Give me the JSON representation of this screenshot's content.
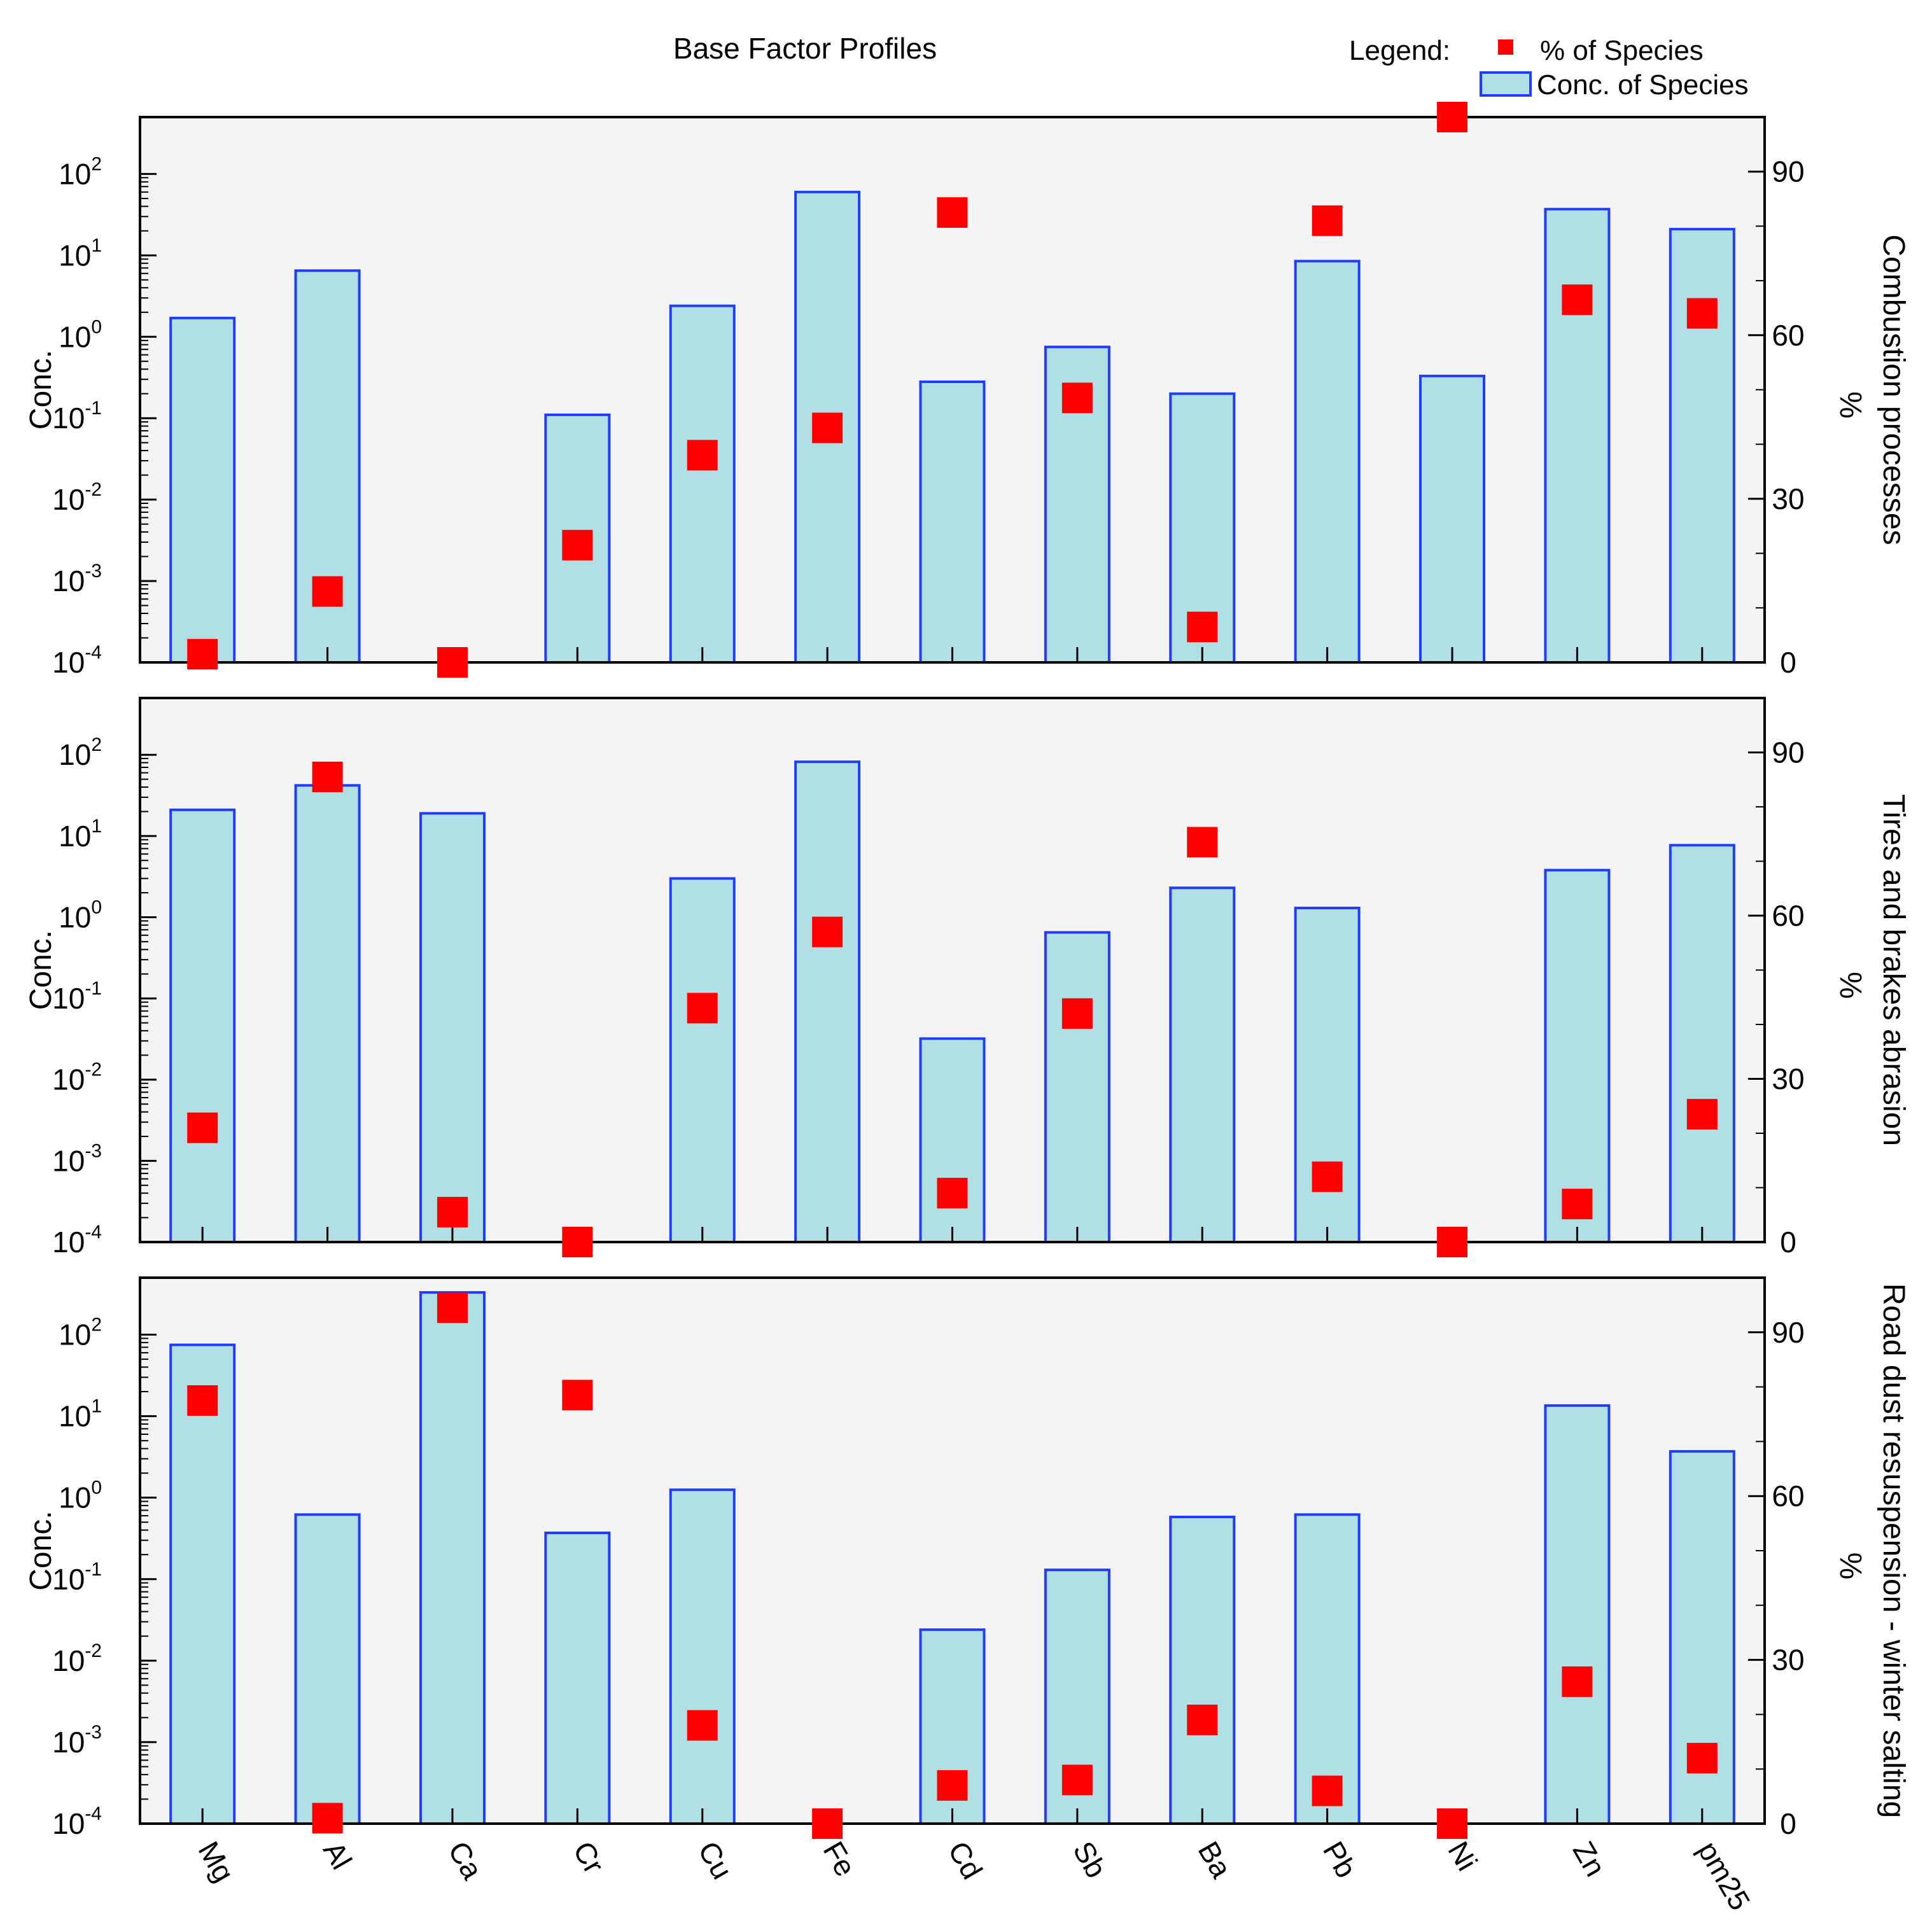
{
  "title": "Base Factor Profiles",
  "legend": {
    "label": "Legend:",
    "items": [
      {
        "name": "% of Species",
        "symbol": "red-square-marker",
        "color": "#ff0000"
      },
      {
        "name": "Conc. of Species",
        "symbol": "bar-swatch",
        "color": "#b0e0e6"
      }
    ],
    "placement": "top-right"
  },
  "colors": {
    "bar_fill": "#b0e0e6",
    "bar_stroke": "#1f3cff",
    "marker": "#ff0000",
    "plot_bg": "#f4f4f4",
    "axis": "#000000"
  },
  "chart_data": [
    {
      "type": "bar",
      "panel_label": "Combustion processes",
      "categories": [
        "Mg",
        "Al",
        "Ca",
        "Cr",
        "Cu",
        "Fe",
        "Cd",
        "Sb",
        "Ba",
        "Pb",
        "Ni",
        "Zn",
        "pm25"
      ],
      "ylabel_left": "Conc.",
      "ylabel_right": "%",
      "yscale_left": "log",
      "ylim_left": [
        0.0001,
        500
      ],
      "ylim_right": [
        0,
        100
      ],
      "left_ticks": [
        "10-4",
        "10-3",
        "10-2",
        "10-1",
        "100",
        "101",
        "102"
      ],
      "right_ticks": [
        "0",
        "30",
        "60",
        "90"
      ],
      "series": [
        {
          "name": "Conc. of Species",
          "kind": "bar",
          "axis": "left",
          "values": [
            1.7,
            6.5,
            null,
            0.11,
            2.4,
            60,
            0.28,
            0.75,
            0.2,
            8.5,
            0.33,
            37,
            21
          ]
        },
        {
          "name": "% of Species",
          "kind": "marker",
          "axis": "right",
          "values": [
            1.5,
            13,
            0,
            21.5,
            38,
            43,
            82.5,
            48.5,
            6.5,
            81,
            100,
            66.5,
            64
          ]
        }
      ]
    },
    {
      "type": "bar",
      "panel_label": "Tires and brakes abrasion",
      "categories": [
        "Mg",
        "Al",
        "Ca",
        "Cr",
        "Cu",
        "Fe",
        "Cd",
        "Sb",
        "Ba",
        "Pb",
        "Ni",
        "Zn",
        "pm25"
      ],
      "ylabel_left": "Conc.",
      "ylabel_right": "%",
      "yscale_left": "log",
      "ylim_left": [
        0.0001,
        500
      ],
      "ylim_right": [
        0,
        100
      ],
      "left_ticks": [
        "10-4",
        "10-3",
        "10-2",
        "10-1",
        "100",
        "101",
        "102"
      ],
      "right_ticks": [
        "0",
        "30",
        "60",
        "90"
      ],
      "series": [
        {
          "name": "Conc. of Species",
          "kind": "bar",
          "axis": "left",
          "values": [
            21,
            42,
            19,
            null,
            3,
            82,
            0.032,
            0.65,
            2.3,
            1.3,
            null,
            3.8,
            7.7
          ]
        },
        {
          "name": "% of Species",
          "kind": "marker",
          "axis": "right",
          "values": [
            21,
            85.5,
            5.5,
            0,
            43,
            57,
            9,
            42,
            73.5,
            12,
            0,
            7,
            23.5
          ]
        }
      ]
    },
    {
      "type": "bar",
      "panel_label": "Road dust resuspension - winter salting",
      "categories": [
        "Mg",
        "Al",
        "Ca",
        "Cr",
        "Cu",
        "Fe",
        "Cd",
        "Sb",
        "Ba",
        "Pb",
        "Ni",
        "Zn",
        "pm25"
      ],
      "ylabel_left": "Conc.",
      "ylabel_right": "%",
      "yscale_left": "log",
      "ylim_left": [
        0.0001,
        500
      ],
      "ylim_right": [
        0,
        100
      ],
      "left_ticks": [
        "10-4",
        "10-3",
        "10-2",
        "10-1",
        "100",
        "101",
        "102"
      ],
      "right_ticks": [
        "0",
        "30",
        "60",
        "90"
      ],
      "series": [
        {
          "name": "Conc. of Species",
          "kind": "bar",
          "axis": "left",
          "values": [
            75,
            0.62,
            330,
            0.37,
            1.25,
            null,
            0.024,
            0.13,
            0.58,
            0.62,
            null,
            13.5,
            3.7
          ]
        },
        {
          "name": "% of Species",
          "kind": "marker",
          "axis": "right",
          "values": [
            77.5,
            1,
            94.5,
            78.5,
            18,
            0,
            7,
            8,
            19,
            6,
            0,
            26,
            12
          ]
        }
      ]
    }
  ]
}
